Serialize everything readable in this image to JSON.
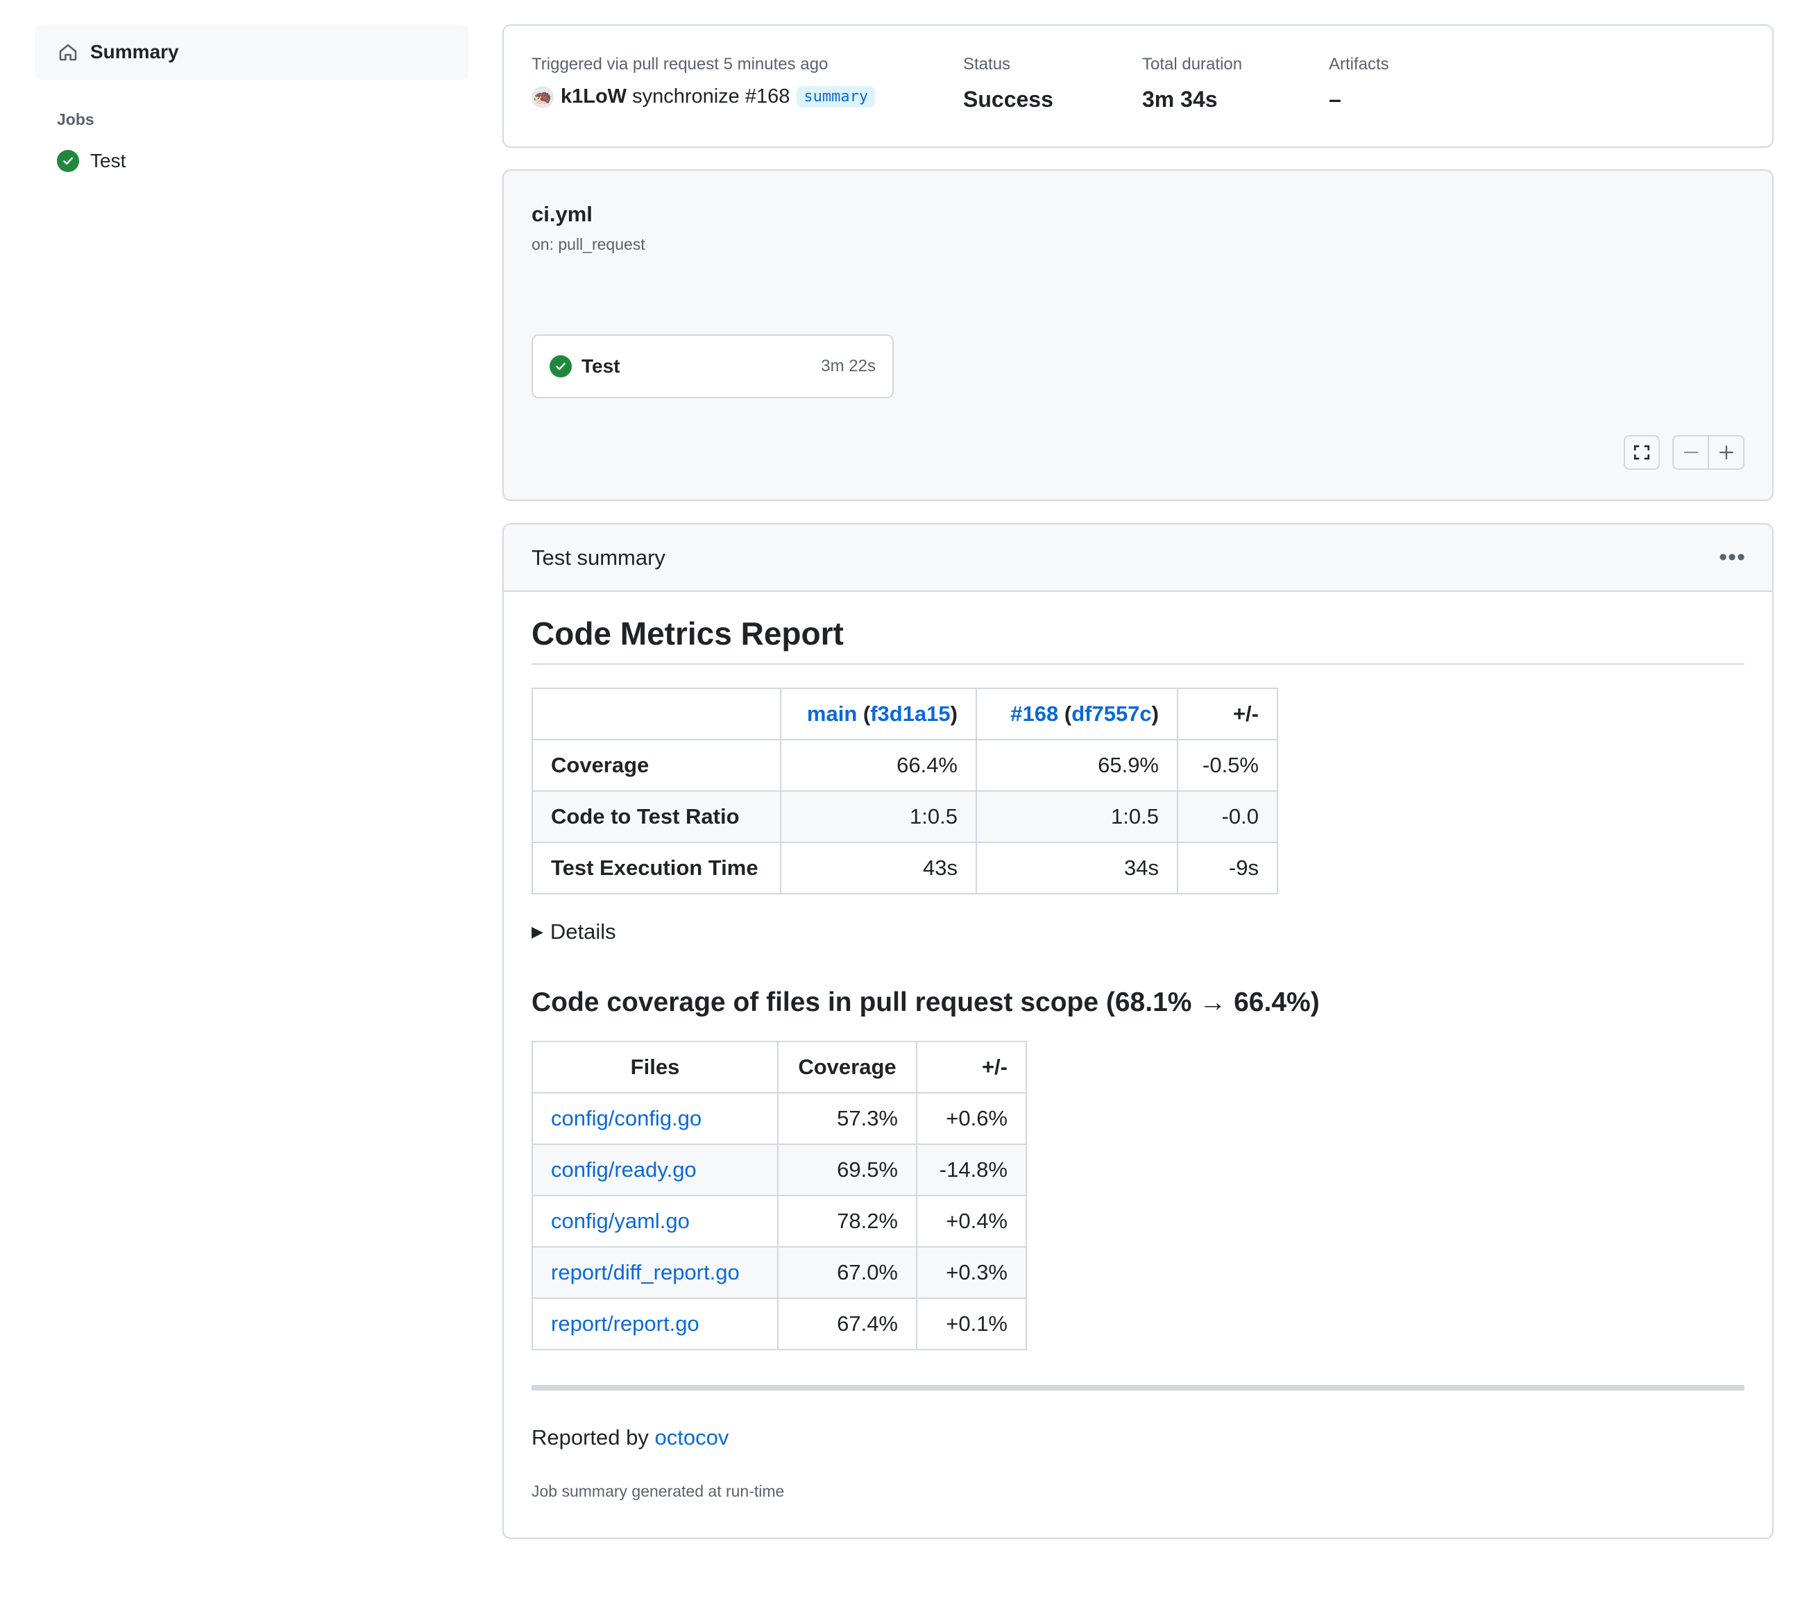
{
  "sidebar": {
    "summary_label": "Summary",
    "jobs_label": "Jobs",
    "jobs": [
      {
        "label": "Test",
        "status": "success"
      }
    ]
  },
  "run": {
    "trigger_text": "Triggered via pull request 5 minutes ago",
    "actor": "k1LoW",
    "event_text": "synchronize #168",
    "branch": "summary",
    "status_label": "Status",
    "status_value": "Success",
    "duration_label": "Total duration",
    "duration_value": "3m 34s",
    "artifacts_label": "Artifacts",
    "artifacts_value": "–"
  },
  "workflow": {
    "file": "ci.yml",
    "on": "on: pull_request",
    "job": {
      "name": "Test",
      "duration": "3m 22s"
    }
  },
  "summary": {
    "title": "Test summary",
    "report_title": "Code Metrics Report",
    "metrics": {
      "base_ref": "main",
      "base_sha": "f3d1a15",
      "head_ref": "#168",
      "head_sha": "df7557c",
      "diff_header": "+/-",
      "rows": [
        {
          "label": "Coverage",
          "base": "66.4%",
          "head": "65.9%",
          "diff": "-0.5%"
        },
        {
          "label": "Code to Test Ratio",
          "base": "1:0.5",
          "head": "1:0.5",
          "diff": "-0.0"
        },
        {
          "label": "Test Execution Time",
          "base": "43s",
          "head": "34s",
          "diff": "-9s"
        }
      ]
    },
    "details_label": "Details",
    "files_title": "Code coverage of files in pull request scope (68.1% → 66.4%)",
    "files": {
      "headers": [
        "Files",
        "Coverage",
        "+/-"
      ],
      "rows": [
        {
          "file": "config/config.go",
          "coverage": "57.3%",
          "diff": "+0.6%"
        },
        {
          "file": "config/ready.go",
          "coverage": "69.5%",
          "diff": "-14.8%"
        },
        {
          "file": "config/yaml.go",
          "coverage": "78.2%",
          "diff": "+0.4%"
        },
        {
          "file": "report/diff_report.go",
          "coverage": "67.0%",
          "diff": "+0.3%"
        },
        {
          "file": "report/report.go",
          "coverage": "67.4%",
          "diff": "+0.1%"
        }
      ]
    },
    "reported_by_prefix": "Reported by ",
    "reported_by_link": "octocov",
    "generated_note": "Job summary generated at run-time"
  },
  "colors": {
    "success": "#1f883d",
    "link": "#0969da",
    "border": "#d1d9e0"
  },
  "icons": [
    "home-icon",
    "check-circle-icon",
    "fullscreen-icon",
    "zoom-out-icon",
    "zoom-in-icon",
    "kebab-icon",
    "disclosure-triangle-icon"
  ]
}
